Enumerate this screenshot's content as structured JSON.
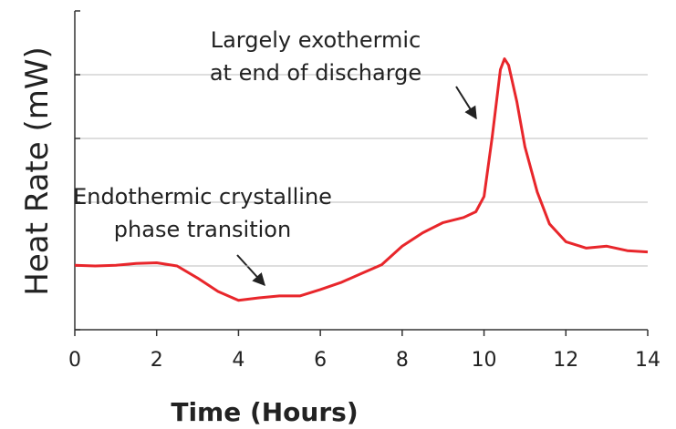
{
  "chart_data": {
    "type": "line",
    "xlabel": "Time (Hours)",
    "ylabel": "Heat Rate (mW)",
    "x": [
      0,
      0.5,
      1,
      1.5,
      2,
      2.5,
      3,
      3.5,
      4,
      4.5,
      5,
      5.5,
      6,
      6.5,
      7,
      7.5,
      8,
      8.5,
      9,
      9.5,
      9.8,
      10,
      10.2,
      10.4,
      10.5,
      10.6,
      10.8,
      11,
      11.3,
      11.6,
      12,
      12.5,
      13,
      13.5,
      14
    ],
    "series": [
      {
        "color": "#e8262b",
        "values": [
          1.01,
          1.0,
          1.01,
          1.04,
          1.05,
          1.0,
          0.81,
          0.6,
          0.46,
          0.5,
          0.53,
          0.53,
          0.63,
          0.74,
          0.88,
          1.02,
          1.31,
          1.52,
          1.68,
          1.76,
          1.85,
          2.09,
          3.02,
          4.08,
          4.25,
          4.15,
          3.58,
          2.87,
          2.16,
          1.66,
          1.38,
          1.28,
          1.31,
          1.24,
          1.22
        ]
      }
    ],
    "xlim": [
      0,
      14
    ],
    "xticks": [
      0,
      2,
      4,
      6,
      8,
      10,
      12,
      14
    ],
    "ylim": [
      0,
      5
    ],
    "yticks": [
      0,
      1,
      2,
      3,
      4,
      5
    ],
    "ytick_labels": false,
    "grid": true,
    "annotations": [
      {
        "lines": [
          "Largely exothermic",
          "at end of discharge"
        ]
      },
      {
        "lines": [
          "Endothermic crystalline",
          "phase transition"
        ]
      }
    ]
  }
}
